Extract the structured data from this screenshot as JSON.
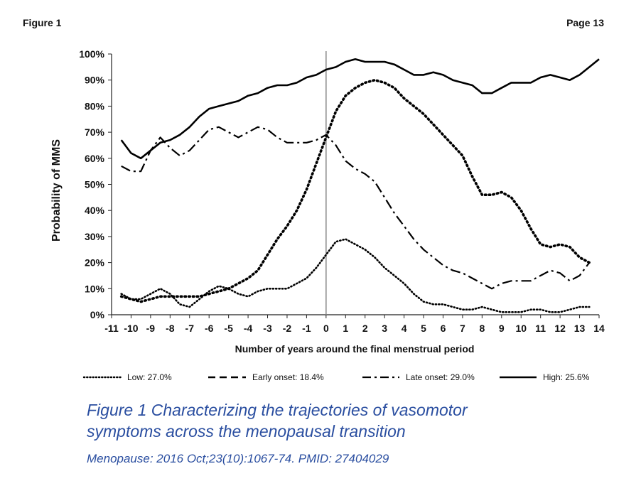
{
  "header": {
    "left": "Figure 1",
    "right": "Page 13"
  },
  "caption": {
    "title_line1": "Figure 1   Characterizing the trajectories of vasomotor",
    "title_line2": "symptoms across the menopausal transition",
    "citation": "Menopause: 2016 Oct;23(10):1067-74. PMID: 27404029"
  },
  "chart_data": {
    "type": "line",
    "xlabel": "Number of years around the final menstrual period",
    "ylabel": "Probability of MMS",
    "xlim": [
      -11,
      14
    ],
    "ylim": [
      0,
      100
    ],
    "xticks": [
      -11,
      -10,
      -9,
      -8,
      -7,
      -6,
      -5,
      -4,
      -3,
      -2,
      -1,
      0,
      1,
      2,
      3,
      4,
      5,
      6,
      7,
      8,
      9,
      10,
      11,
      12,
      13,
      14
    ],
    "yticks": [
      0,
      10,
      20,
      30,
      40,
      50,
      60,
      70,
      80,
      90,
      100
    ],
    "ytick_labels": [
      "0%",
      "10%",
      "20%",
      "30%",
      "40%",
      "50%",
      "60%",
      "70%",
      "80%",
      "90%",
      "100%"
    ],
    "reference_line_x": 0,
    "legend_position": "bottom",
    "series": [
      {
        "name": "Low: 27.0%",
        "style": "dotted",
        "x": [
          -10.5,
          -10,
          -9.5,
          -9,
          -8.5,
          -8,
          -7.5,
          -7,
          -6.5,
          -6,
          -5.5,
          -5,
          -4.5,
          -4,
          -3.5,
          -3,
          -2.5,
          -2,
          -1.5,
          -1,
          -0.5,
          0,
          0.5,
          1,
          1.5,
          2,
          2.5,
          3,
          3.5,
          4,
          4.5,
          5,
          5.5,
          6,
          6.5,
          7,
          7.5,
          8,
          8.5,
          9,
          9.5,
          10,
          10.5,
          11,
          11.5,
          12,
          12.5,
          13,
          13.5
        ],
        "y": [
          8,
          6,
          6,
          8,
          10,
          8,
          4,
          3,
          6,
          9,
          11,
          10,
          8,
          7,
          9,
          10,
          10,
          10,
          12,
          14,
          18,
          23,
          28,
          29,
          27,
          25,
          22,
          18,
          15,
          12,
          8,
          5,
          4,
          4,
          3,
          2,
          2,
          3,
          2,
          1,
          1,
          1,
          2,
          2,
          1,
          1,
          2,
          3,
          3
        ]
      },
      {
        "name": "Early onset: 18.4%",
        "style": "dashed",
        "x": [
          -10.5,
          -10,
          -9.5,
          -9,
          -8.5,
          -8,
          -7.5,
          -7,
          -6.5,
          -6,
          -5.5,
          -5,
          -4.5,
          -4,
          -3.5,
          -3,
          -2.5,
          -2,
          -1.5,
          -1,
          -0.5,
          0,
          0.5,
          1,
          1.5,
          2,
          2.5,
          3,
          3.5,
          4,
          4.5,
          5,
          5.5,
          6,
          6.5,
          7,
          7.5,
          8,
          8.5,
          9,
          9.5,
          10,
          10.5,
          11,
          11.5,
          12,
          12.5,
          13,
          13.5
        ],
        "y": [
          7,
          6,
          5,
          6,
          7,
          7,
          7,
          7,
          7,
          8,
          9,
          10,
          12,
          14,
          17,
          23,
          29,
          34,
          40,
          48,
          58,
          68,
          78,
          84,
          87,
          89,
          90,
          89,
          87,
          83,
          80,
          77,
          73,
          69,
          65,
          61,
          53,
          46,
          46,
          47,
          45,
          40,
          33,
          27,
          26,
          27,
          26,
          22,
          20
        ]
      },
      {
        "name": "Late onset: 29.0%",
        "style": "dashdot",
        "x": [
          -10.5,
          -10,
          -9.5,
          -9,
          -8.5,
          -8,
          -7.5,
          -7,
          -6.5,
          -6,
          -5.5,
          -5,
          -4.5,
          -4,
          -3.5,
          -3,
          -2.5,
          -2,
          -1.5,
          -1,
          -0.5,
          0,
          0.5,
          1,
          1.5,
          2,
          2.5,
          3,
          3.5,
          4,
          4.5,
          5,
          5.5,
          6,
          6.5,
          7,
          7.5,
          8,
          8.5,
          9,
          9.5,
          10,
          10.5,
          11,
          11.5,
          12,
          12.5,
          13,
          13.5
        ],
        "y": [
          57,
          55,
          55,
          63,
          68,
          64,
          61,
          63,
          67,
          71,
          72,
          70,
          68,
          70,
          72,
          71,
          68,
          66,
          66,
          66,
          67,
          69,
          65,
          59,
          56,
          54,
          51,
          45,
          39,
          34,
          29,
          25,
          22,
          19,
          17,
          16,
          14,
          12,
          10,
          12,
          13,
          13,
          13,
          15,
          17,
          16,
          13,
          15,
          20
        ]
      },
      {
        "name": "High: 25.6%",
        "style": "solid",
        "x": [
          -10.5,
          -10,
          -9.5,
          -9,
          -8.5,
          -8,
          -7.5,
          -7,
          -6.5,
          -6,
          -5.5,
          -5,
          -4.5,
          -4,
          -3.5,
          -3,
          -2.5,
          -2,
          -1.5,
          -1,
          -0.5,
          0,
          0.5,
          1,
          1.5,
          2,
          2.5,
          3,
          3.5,
          4,
          4.5,
          5,
          5.5,
          6,
          6.5,
          7,
          7.5,
          8,
          8.5,
          9,
          9.5,
          10,
          10.5,
          11,
          11.5,
          12,
          12.5,
          13,
          13.5,
          14
        ],
        "y": [
          67,
          62,
          60,
          63,
          66,
          67,
          69,
          72,
          76,
          79,
          80,
          81,
          82,
          84,
          85,
          87,
          88,
          88,
          89,
          91,
          92,
          94,
          95,
          97,
          98,
          97,
          97,
          97,
          96,
          94,
          92,
          92,
          93,
          92,
          90,
          89,
          88,
          85,
          85,
          87,
          89,
          89,
          89,
          91,
          92,
          91,
          90,
          92,
          95,
          98
        ]
      }
    ]
  }
}
